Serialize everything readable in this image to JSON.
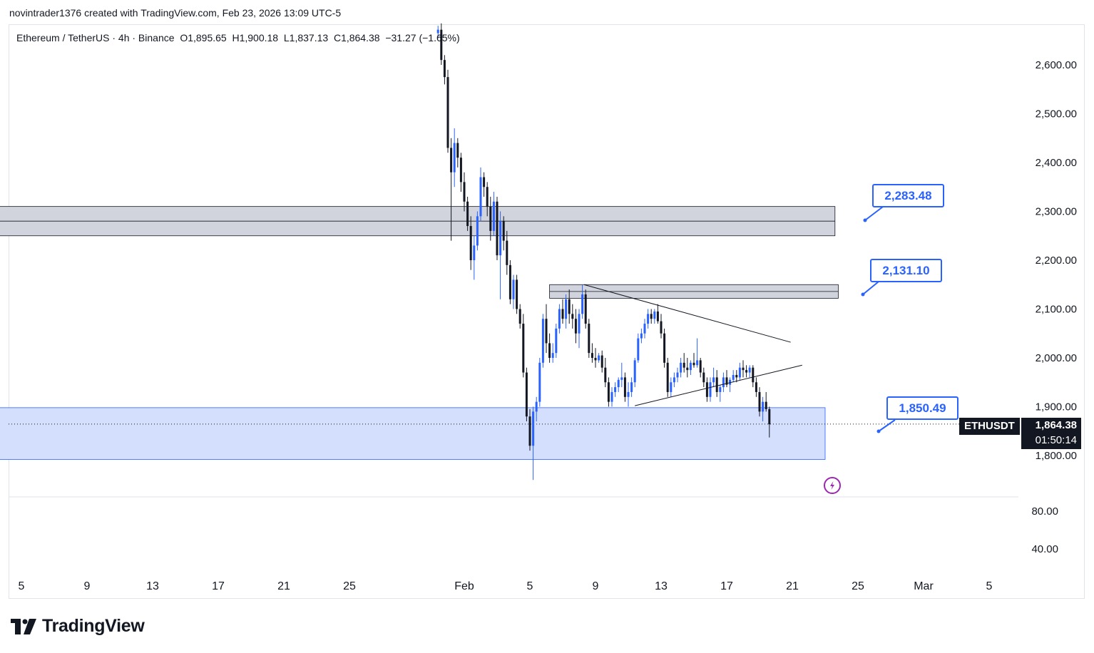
{
  "header": {
    "credit": "novintrader1376 created with TradingView.com, Feb 23, 2026 13:09 UTC-5"
  },
  "legend": {
    "symbol": "Ethereum / TetherUS · 4h · Binance",
    "open": "O1,895.65",
    "high": "H1,900.18",
    "low": "L1,837.13",
    "close": "C1,864.38",
    "change": "−31.27 (−1.65%)"
  },
  "price_label": {
    "symbol": "ETHUSDT",
    "price": "1,864.38",
    "countdown": "01:50:14"
  },
  "callouts": [
    {
      "label": "2,283.48",
      "value": 2283.48
    },
    {
      "label": "2,131.10",
      "value": 2131.1
    },
    {
      "label": "1,850.49",
      "value": 1850.49
    }
  ],
  "brand": {
    "name": "TradingView"
  },
  "colors": {
    "candle_up": "#2962ff",
    "candle_down": "#131722",
    "zone_gray": "#d1d4dc",
    "zone_blue": "#d4defd",
    "callout": "#2962ff",
    "alert_icon": "#9c27b0"
  },
  "chart_data": {
    "type": "candlestick",
    "title": "Ethereum / TetherUS · 4h · Binance",
    "ylim": [
      1735,
      2690
    ],
    "y_ticks": [
      {
        "label": "2,600.00",
        "value": 2600
      },
      {
        "label": "2,500.00",
        "value": 2500
      },
      {
        "label": "2,400.00",
        "value": 2400
      },
      {
        "label": "2,300.00",
        "value": 2300
      },
      {
        "label": "2,200.00",
        "value": 2200
      },
      {
        "label": "2,100.00",
        "value": 2100
      },
      {
        "label": "2,000.00",
        "value": 2000
      },
      {
        "label": "1,900.00",
        "value": 1900
      },
      {
        "label": "1,800.00",
        "value": 1800
      }
    ],
    "indicator_ticks": [
      {
        "label": "80.00",
        "value": 80
      },
      {
        "label": "40.00",
        "value": 40
      }
    ],
    "x_ticks": [
      {
        "label": "5",
        "day": -27
      },
      {
        "label": "9",
        "day": -23
      },
      {
        "label": "13",
        "day": -19
      },
      {
        "label": "17",
        "day": -15
      },
      {
        "label": "21",
        "day": -11
      },
      {
        "label": "25",
        "day": -7
      },
      {
        "label": "Feb",
        "day": 0
      },
      {
        "label": "5",
        "day": 4
      },
      {
        "label": "9",
        "day": 8
      },
      {
        "label": "13",
        "day": 12
      },
      {
        "label": "17",
        "day": 16
      },
      {
        "label": "21",
        "day": 20
      },
      {
        "label": "25",
        "day": 24
      },
      {
        "label": "Mar",
        "day": 28
      },
      {
        "label": "5",
        "day": 32
      }
    ],
    "zones": [
      {
        "from": 2250,
        "to": 2310,
        "mid": 2280,
        "style": "gray",
        "start_day": -27.7,
        "end_day": 23.6
      },
      {
        "from": 2122,
        "to": 2150,
        "mid": 2136,
        "style": "gray",
        "start_day": 6.2,
        "end_day": 23.8
      },
      {
        "from": 1792,
        "to": 1898,
        "style": "blue",
        "start_day": -27.7,
        "end_day": 23.0
      }
    ],
    "trendlines": [
      {
        "x1": 8.3,
        "y1": 2150,
        "x2": 20.9,
        "y2": 2032
      },
      {
        "x1": 11.4,
        "y1": 1902,
        "x2": 21.6,
        "y2": 1985
      }
    ],
    "current_price": 1864.38,
    "candles": [
      [
        -0.6,
        2665,
        2680,
        2655,
        2672
      ],
      [
        -0.4,
        2672,
        2685,
        2600,
        2610
      ],
      [
        -0.2,
        2610,
        2620,
        2560,
        2575
      ],
      [
        0.0,
        2575,
        2590,
        2420,
        2430
      ],
      [
        0.2,
        2430,
        2450,
        2240,
        2380
      ],
      [
        0.4,
        2380,
        2470,
        2350,
        2440
      ],
      [
        0.6,
        2440,
        2450,
        2390,
        2410
      ],
      [
        0.8,
        2410,
        2420,
        2340,
        2360
      ],
      [
        1.0,
        2360,
        2380,
        2300,
        2320
      ],
      [
        1.2,
        2320,
        2330,
        2260,
        2270
      ],
      [
        1.4,
        2270,
        2290,
        2180,
        2200
      ],
      [
        1.6,
        2200,
        2250,
        2160,
        2230
      ],
      [
        1.8,
        2230,
        2300,
        2220,
        2290
      ],
      [
        2.0,
        2290,
        2390,
        2280,
        2370
      ],
      [
        2.2,
        2370,
        2380,
        2330,
        2350
      ],
      [
        2.4,
        2350,
        2360,
        2290,
        2310
      ],
      [
        2.6,
        2310,
        2330,
        2240,
        2260
      ],
      [
        2.8,
        2260,
        2340,
        2250,
        2320
      ],
      [
        3.0,
        2320,
        2330,
        2200,
        2210
      ],
      [
        3.2,
        2210,
        2300,
        2120,
        2280
      ],
      [
        3.4,
        2280,
        2290,
        2220,
        2240
      ],
      [
        3.6,
        2240,
        2260,
        2170,
        2190
      ],
      [
        3.8,
        2190,
        2200,
        2110,
        2120
      ],
      [
        4.0,
        2120,
        2170,
        2100,
        2160
      ],
      [
        4.2,
        2160,
        2170,
        2090,
        2100
      ],
      [
        4.4,
        2100,
        2110,
        2060,
        2070
      ],
      [
        4.6,
        2070,
        2090,
        1960,
        1970
      ],
      [
        4.8,
        1970,
        1980,
        1870,
        1880
      ],
      [
        5.0,
        1880,
        1895,
        1810,
        1820
      ],
      [
        5.2,
        1820,
        1900,
        1750,
        1890
      ],
      [
        5.4,
        1890,
        1920,
        1870,
        1910
      ],
      [
        5.6,
        1910,
        2000,
        1900,
        1990
      ],
      [
        5.8,
        1990,
        2090,
        1980,
        2080
      ],
      [
        6.0,
        2080,
        2110,
        2010,
        2030
      ],
      [
        6.2,
        2030,
        2050,
        1990,
        2000
      ],
      [
        6.4,
        2000,
        2030,
        1990,
        2010
      ],
      [
        6.6,
        2010,
        2070,
        2000,
        2060
      ],
      [
        6.8,
        2060,
        2110,
        2050,
        2100
      ],
      [
        7.0,
        2100,
        2120,
        2070,
        2080
      ],
      [
        7.2,
        2080,
        2130,
        2060,
        2120
      ],
      [
        7.4,
        2120,
        2140,
        2070,
        2090
      ],
      [
        7.6,
        2090,
        2110,
        2060,
        2080
      ],
      [
        7.8,
        2080,
        2100,
        2030,
        2050
      ],
      [
        8.0,
        2050,
        2100,
        2020,
        2090
      ],
      [
        8.2,
        2090,
        2150,
        2080,
        2130
      ],
      [
        8.4,
        2130,
        2140,
        2060,
        2070
      ],
      [
        8.6,
        2070,
        2080,
        2000,
        2010
      ],
      [
        8.8,
        2010,
        2030,
        1990,
        2000
      ],
      [
        9.0,
        2000,
        2020,
        1980,
        1995
      ],
      [
        9.2,
        1995,
        2010,
        1990,
        2005
      ],
      [
        9.4,
        2005,
        2015,
        1970,
        1980
      ],
      [
        9.6,
        1980,
        2000,
        1940,
        1950
      ],
      [
        9.8,
        1950,
        1960,
        1900,
        1910
      ],
      [
        10.0,
        1910,
        1940,
        1900,
        1930
      ],
      [
        10.2,
        1930,
        1950,
        1920,
        1940
      ],
      [
        10.4,
        1940,
        1960,
        1930,
        1955
      ],
      [
        10.6,
        1955,
        1990,
        1940,
        1960
      ],
      [
        10.8,
        1960,
        1970,
        1910,
        1920
      ],
      [
        11.0,
        1920,
        1950,
        1900,
        1930
      ],
      [
        11.2,
        1930,
        1960,
        1920,
        1950
      ],
      [
        11.4,
        1950,
        2000,
        1940,
        1995
      ],
      [
        11.6,
        1995,
        2050,
        1990,
        2040
      ],
      [
        11.8,
        2040,
        2060,
        2030,
        2050
      ],
      [
        12.0,
        2050,
        2080,
        2040,
        2070
      ],
      [
        12.2,
        2070,
        2100,
        2060,
        2090
      ],
      [
        12.4,
        2090,
        2100,
        2070,
        2080
      ],
      [
        12.6,
        2080,
        2100,
        2070,
        2095
      ],
      [
        12.8,
        2095,
        2110,
        2070,
        2075
      ],
      [
        13.0,
        2075,
        2090,
        2040,
        2050
      ],
      [
        13.2,
        2050,
        2060,
        1980,
        1990
      ],
      [
        13.4,
        1990,
        2000,
        1920,
        1930
      ],
      [
        13.6,
        1930,
        1960,
        1920,
        1950
      ],
      [
        13.8,
        1950,
        1970,
        1940,
        1960
      ],
      [
        14.0,
        1960,
        1980,
        1950,
        1970
      ],
      [
        14.2,
        1970,
        2000,
        1960,
        1990
      ],
      [
        14.4,
        1990,
        2010,
        1970,
        1980
      ],
      [
        14.6,
        1980,
        2000,
        1960,
        1975
      ],
      [
        14.8,
        1975,
        1995,
        1965,
        1990
      ],
      [
        15.0,
        1990,
        2010,
        1980,
        1985
      ],
      [
        15.2,
        1985,
        2040,
        1980,
        1995
      ],
      [
        15.4,
        1995,
        2000,
        1960,
        1970
      ],
      [
        15.6,
        1970,
        1980,
        1940,
        1950
      ],
      [
        15.8,
        1950,
        1960,
        1910,
        1920
      ],
      [
        16.0,
        1920,
        1960,
        1910,
        1950
      ],
      [
        16.2,
        1950,
        1980,
        1940,
        1960
      ],
      [
        16.4,
        1960,
        1975,
        1920,
        1930
      ],
      [
        16.6,
        1930,
        1945,
        1910,
        1940
      ],
      [
        16.8,
        1940,
        1970,
        1930,
        1960
      ],
      [
        17.0,
        1960,
        1975,
        1940,
        1945
      ],
      [
        17.2,
        1945,
        1960,
        1930,
        1955
      ],
      [
        17.4,
        1955,
        1975,
        1950,
        1965
      ],
      [
        17.6,
        1965,
        1975,
        1950,
        1960
      ],
      [
        17.8,
        1960,
        1990,
        1955,
        1980
      ],
      [
        18.0,
        1980,
        1995,
        1960,
        1975
      ],
      [
        18.2,
        1975,
        1985,
        1960,
        1970
      ],
      [
        18.4,
        1970,
        1985,
        1960,
        1980
      ],
      [
        18.6,
        1980,
        1985,
        1940,
        1950
      ],
      [
        18.8,
        1950,
        1960,
        1920,
        1930
      ],
      [
        19.0,
        1930,
        1940,
        1880,
        1890
      ],
      [
        19.2,
        1890,
        1920,
        1870,
        1910
      ],
      [
        19.4,
        1910,
        1930,
        1890,
        1895
      ],
      [
        19.6,
        1895,
        1900,
        1837,
        1864
      ]
    ]
  }
}
